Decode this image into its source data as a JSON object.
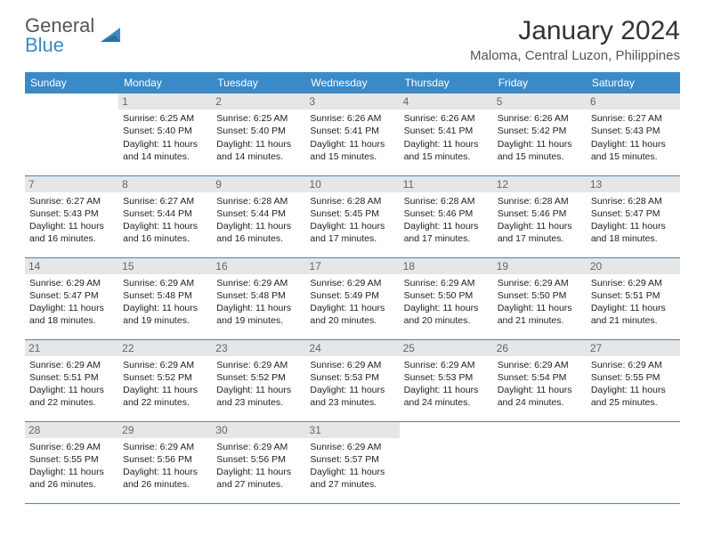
{
  "logo": {
    "line1": "General",
    "line2": "Blue"
  },
  "title": "January 2024",
  "location": "Maloma, Central Luzon, Philippines",
  "colors": {
    "header_bg": "#3a8ac8",
    "header_fg": "#ffffff",
    "daynum_bg": "#e6e6e6",
    "daynum_fg": "#666666",
    "row_divider": "#3a8ac8",
    "body_text": "#222222",
    "page_bg": "#ffffff"
  },
  "weekdays": [
    "Sunday",
    "Monday",
    "Tuesday",
    "Wednesday",
    "Thursday",
    "Friday",
    "Saturday"
  ],
  "layout": {
    "first_weekday_offset": 1,
    "days_in_month": 31,
    "rows": 5,
    "cols": 7
  },
  "days": [
    {
      "n": 1,
      "sunrise": "Sunrise: 6:25 AM",
      "sunset": "Sunset: 5:40 PM",
      "day1": "Daylight: 11 hours",
      "day2": "and 14 minutes."
    },
    {
      "n": 2,
      "sunrise": "Sunrise: 6:25 AM",
      "sunset": "Sunset: 5:40 PM",
      "day1": "Daylight: 11 hours",
      "day2": "and 14 minutes."
    },
    {
      "n": 3,
      "sunrise": "Sunrise: 6:26 AM",
      "sunset": "Sunset: 5:41 PM",
      "day1": "Daylight: 11 hours",
      "day2": "and 15 minutes."
    },
    {
      "n": 4,
      "sunrise": "Sunrise: 6:26 AM",
      "sunset": "Sunset: 5:41 PM",
      "day1": "Daylight: 11 hours",
      "day2": "and 15 minutes."
    },
    {
      "n": 5,
      "sunrise": "Sunrise: 6:26 AM",
      "sunset": "Sunset: 5:42 PM",
      "day1": "Daylight: 11 hours",
      "day2": "and 15 minutes."
    },
    {
      "n": 6,
      "sunrise": "Sunrise: 6:27 AM",
      "sunset": "Sunset: 5:43 PM",
      "day1": "Daylight: 11 hours",
      "day2": "and 15 minutes."
    },
    {
      "n": 7,
      "sunrise": "Sunrise: 6:27 AM",
      "sunset": "Sunset: 5:43 PM",
      "day1": "Daylight: 11 hours",
      "day2": "and 16 minutes."
    },
    {
      "n": 8,
      "sunrise": "Sunrise: 6:27 AM",
      "sunset": "Sunset: 5:44 PM",
      "day1": "Daylight: 11 hours",
      "day2": "and 16 minutes."
    },
    {
      "n": 9,
      "sunrise": "Sunrise: 6:28 AM",
      "sunset": "Sunset: 5:44 PM",
      "day1": "Daylight: 11 hours",
      "day2": "and 16 minutes."
    },
    {
      "n": 10,
      "sunrise": "Sunrise: 6:28 AM",
      "sunset": "Sunset: 5:45 PM",
      "day1": "Daylight: 11 hours",
      "day2": "and 17 minutes."
    },
    {
      "n": 11,
      "sunrise": "Sunrise: 6:28 AM",
      "sunset": "Sunset: 5:46 PM",
      "day1": "Daylight: 11 hours",
      "day2": "and 17 minutes."
    },
    {
      "n": 12,
      "sunrise": "Sunrise: 6:28 AM",
      "sunset": "Sunset: 5:46 PM",
      "day1": "Daylight: 11 hours",
      "day2": "and 17 minutes."
    },
    {
      "n": 13,
      "sunrise": "Sunrise: 6:28 AM",
      "sunset": "Sunset: 5:47 PM",
      "day1": "Daylight: 11 hours",
      "day2": "and 18 minutes."
    },
    {
      "n": 14,
      "sunrise": "Sunrise: 6:29 AM",
      "sunset": "Sunset: 5:47 PM",
      "day1": "Daylight: 11 hours",
      "day2": "and 18 minutes."
    },
    {
      "n": 15,
      "sunrise": "Sunrise: 6:29 AM",
      "sunset": "Sunset: 5:48 PM",
      "day1": "Daylight: 11 hours",
      "day2": "and 19 minutes."
    },
    {
      "n": 16,
      "sunrise": "Sunrise: 6:29 AM",
      "sunset": "Sunset: 5:48 PM",
      "day1": "Daylight: 11 hours",
      "day2": "and 19 minutes."
    },
    {
      "n": 17,
      "sunrise": "Sunrise: 6:29 AM",
      "sunset": "Sunset: 5:49 PM",
      "day1": "Daylight: 11 hours",
      "day2": "and 20 minutes."
    },
    {
      "n": 18,
      "sunrise": "Sunrise: 6:29 AM",
      "sunset": "Sunset: 5:50 PM",
      "day1": "Daylight: 11 hours",
      "day2": "and 20 minutes."
    },
    {
      "n": 19,
      "sunrise": "Sunrise: 6:29 AM",
      "sunset": "Sunset: 5:50 PM",
      "day1": "Daylight: 11 hours",
      "day2": "and 21 minutes."
    },
    {
      "n": 20,
      "sunrise": "Sunrise: 6:29 AM",
      "sunset": "Sunset: 5:51 PM",
      "day1": "Daylight: 11 hours",
      "day2": "and 21 minutes."
    },
    {
      "n": 21,
      "sunrise": "Sunrise: 6:29 AM",
      "sunset": "Sunset: 5:51 PM",
      "day1": "Daylight: 11 hours",
      "day2": "and 22 minutes."
    },
    {
      "n": 22,
      "sunrise": "Sunrise: 6:29 AM",
      "sunset": "Sunset: 5:52 PM",
      "day1": "Daylight: 11 hours",
      "day2": "and 22 minutes."
    },
    {
      "n": 23,
      "sunrise": "Sunrise: 6:29 AM",
      "sunset": "Sunset: 5:52 PM",
      "day1": "Daylight: 11 hours",
      "day2": "and 23 minutes."
    },
    {
      "n": 24,
      "sunrise": "Sunrise: 6:29 AM",
      "sunset": "Sunset: 5:53 PM",
      "day1": "Daylight: 11 hours",
      "day2": "and 23 minutes."
    },
    {
      "n": 25,
      "sunrise": "Sunrise: 6:29 AM",
      "sunset": "Sunset: 5:53 PM",
      "day1": "Daylight: 11 hours",
      "day2": "and 24 minutes."
    },
    {
      "n": 26,
      "sunrise": "Sunrise: 6:29 AM",
      "sunset": "Sunset: 5:54 PM",
      "day1": "Daylight: 11 hours",
      "day2": "and 24 minutes."
    },
    {
      "n": 27,
      "sunrise": "Sunrise: 6:29 AM",
      "sunset": "Sunset: 5:55 PM",
      "day1": "Daylight: 11 hours",
      "day2": "and 25 minutes."
    },
    {
      "n": 28,
      "sunrise": "Sunrise: 6:29 AM",
      "sunset": "Sunset: 5:55 PM",
      "day1": "Daylight: 11 hours",
      "day2": "and 26 minutes."
    },
    {
      "n": 29,
      "sunrise": "Sunrise: 6:29 AM",
      "sunset": "Sunset: 5:56 PM",
      "day1": "Daylight: 11 hours",
      "day2": "and 26 minutes."
    },
    {
      "n": 30,
      "sunrise": "Sunrise: 6:29 AM",
      "sunset": "Sunset: 5:56 PM",
      "day1": "Daylight: 11 hours",
      "day2": "and 27 minutes."
    },
    {
      "n": 31,
      "sunrise": "Sunrise: 6:29 AM",
      "sunset": "Sunset: 5:57 PM",
      "day1": "Daylight: 11 hours",
      "day2": "and 27 minutes."
    }
  ]
}
